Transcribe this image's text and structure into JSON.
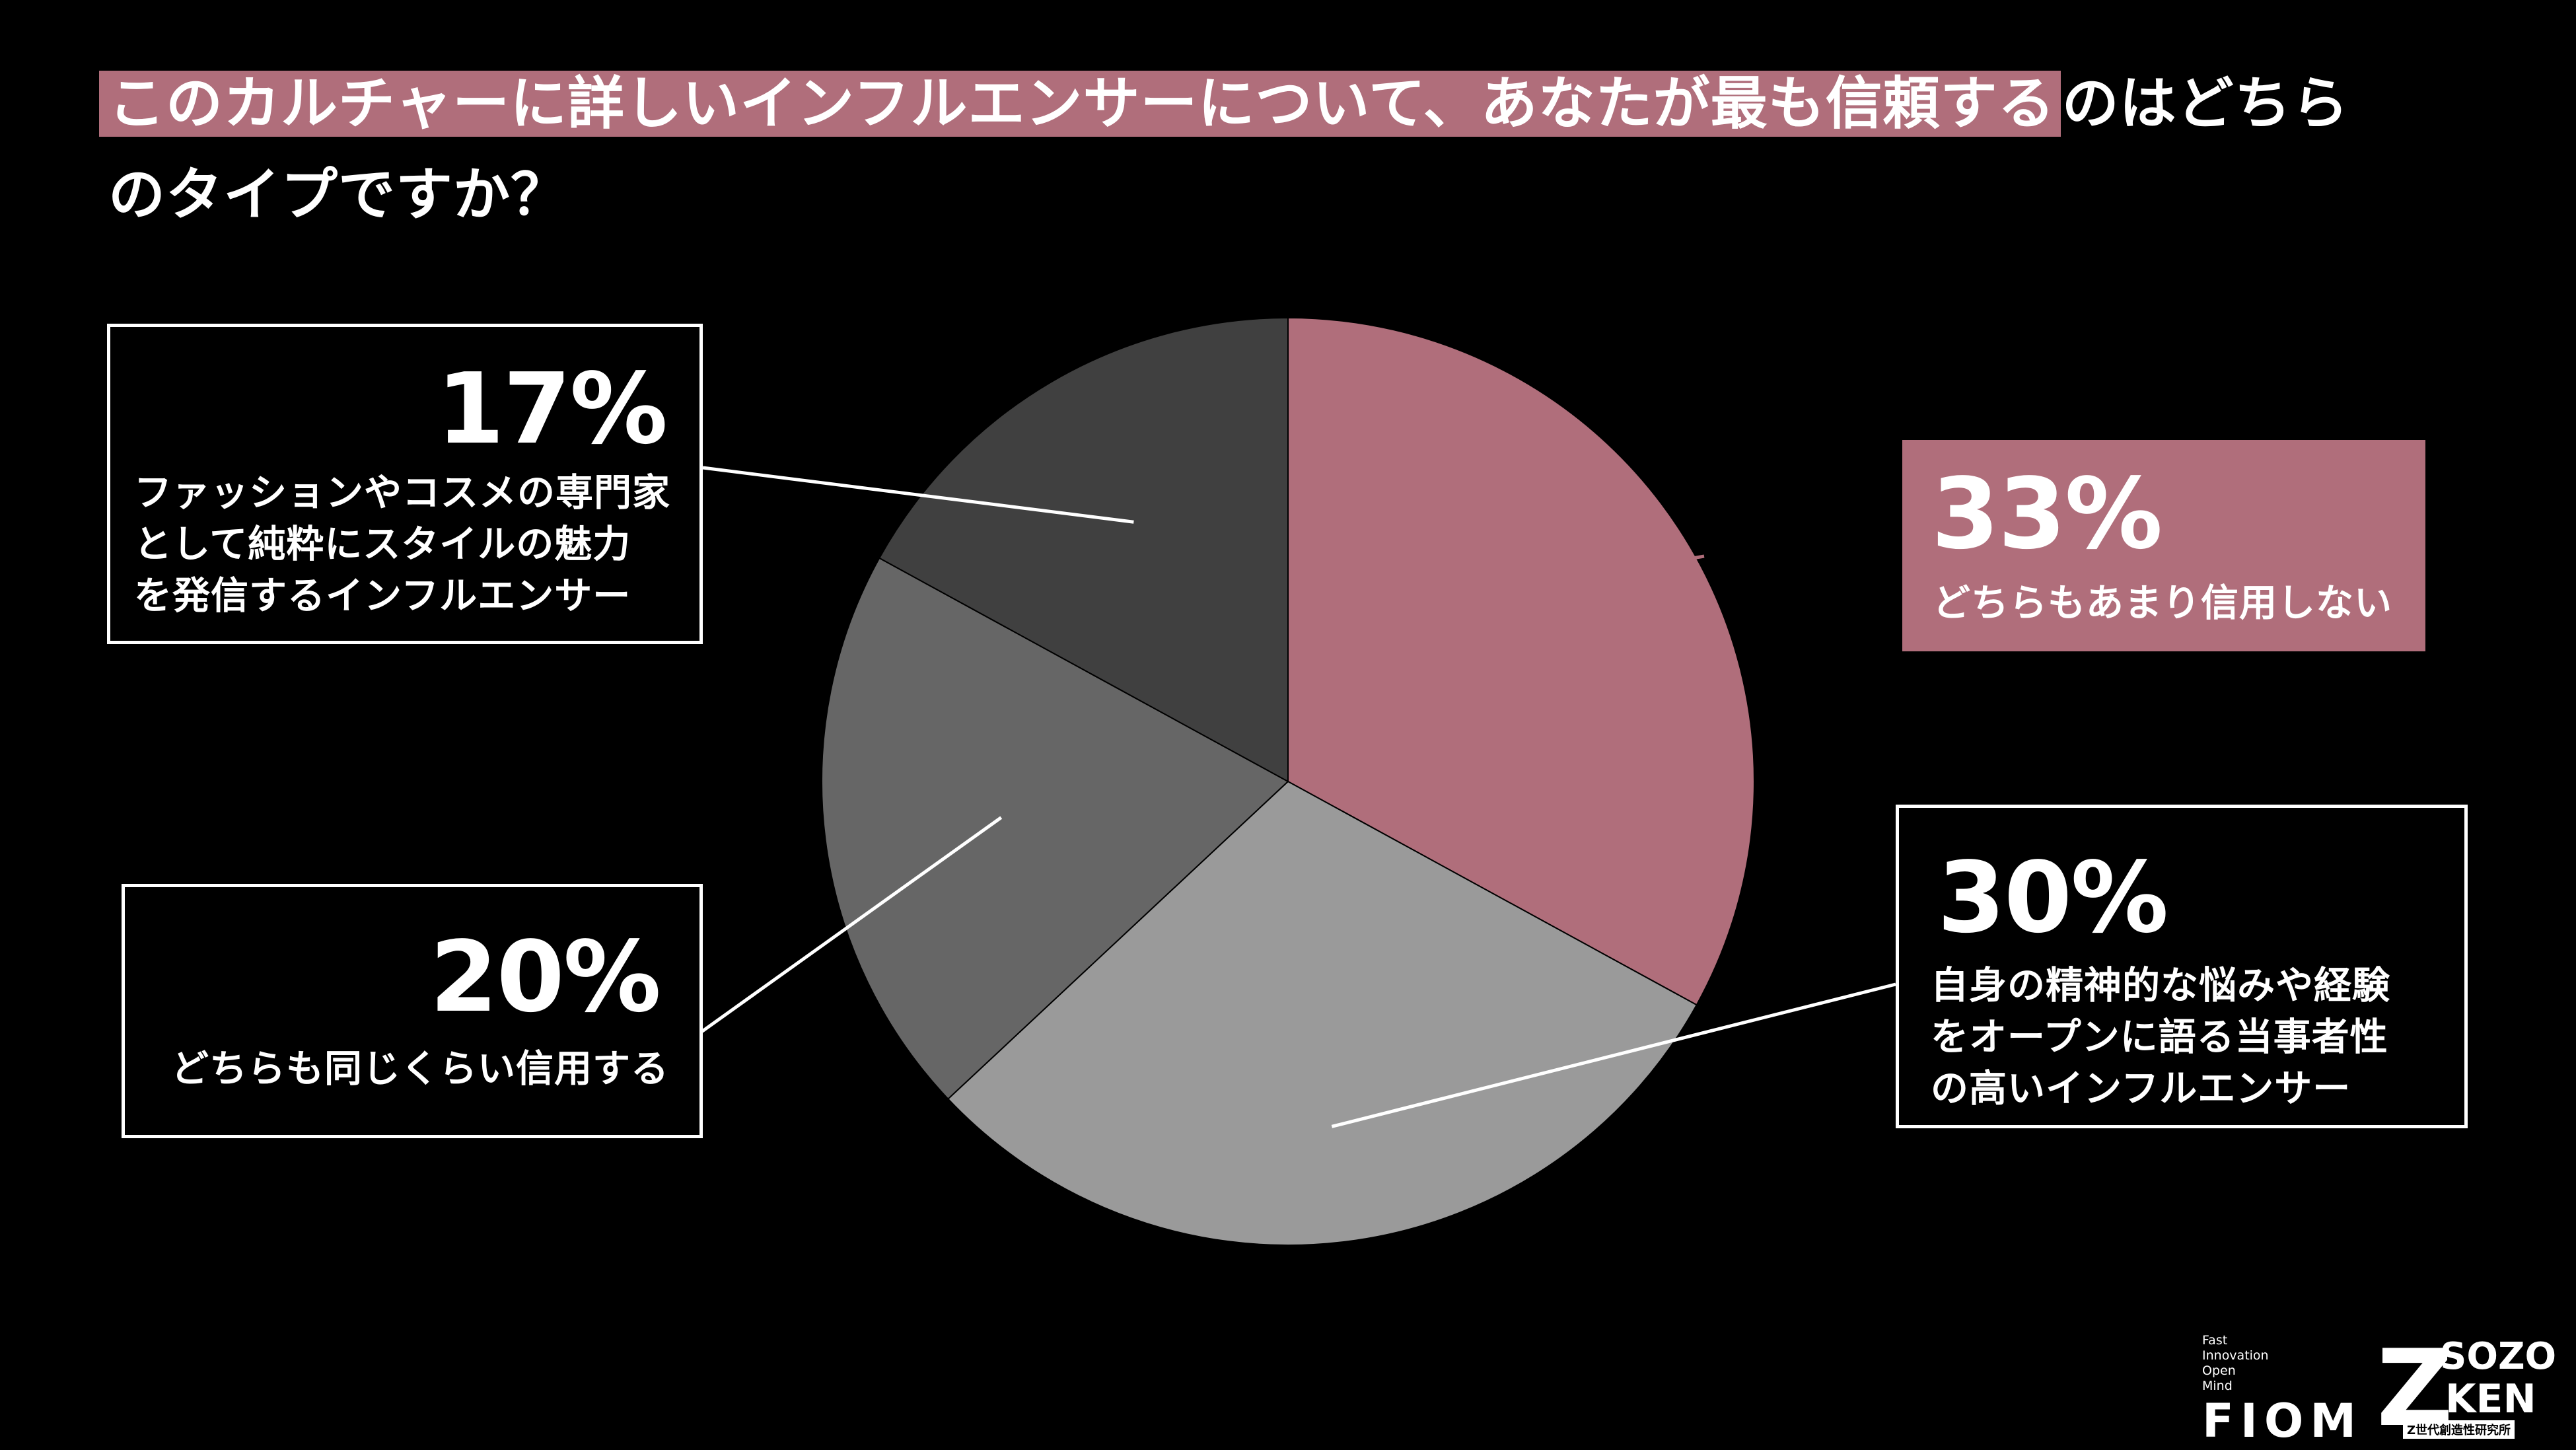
{
  "title": {
    "highlighted": "このカルチャーに詳しいインフルエンサーについて、あなたが最も信頼する",
    "rest": "のはどちら",
    "line2": "のタイプですか？"
  },
  "chart_data": {
    "type": "pie",
    "slices": [
      {
        "label": "どちらもあまり信用しない",
        "value": 33,
        "value_label": "33%",
        "color": "#b06e7b"
      },
      {
        "label": "自身の精神的な悩みや経験をオープンに語る当事者性の高いインフルエンサー",
        "value": 30,
        "value_label": "30%",
        "color": "#9a9a9a"
      },
      {
        "label": "どちらも同じくらい信用する",
        "value": 20,
        "value_label": "20%",
        "color": "#666666"
      },
      {
        "label": "ファッションやコスメの専門家として純粋にスタイルの魅力を発信するインフルエンサー",
        "value": 17,
        "value_label": "17%",
        "color": "#404040"
      }
    ]
  },
  "callouts": [
    {
      "pct": "33%",
      "lines": [
        "どちらもあまり信用しない"
      ]
    },
    {
      "pct": "30%",
      "lines": [
        "自身の精神的な悩みや経験",
        "をオープンに語る当事者性",
        "の高いインフルエンサー"
      ]
    },
    {
      "pct": "20%",
      "lines": [
        "どちらも同じくらい信用する"
      ]
    },
    {
      "pct": "17%",
      "lines": [
        "ファッションやコスメの専門家",
        "として純粋にスタイルの魅力",
        "を発信するインフルエンサー"
      ]
    }
  ],
  "footer": {
    "fiom_small": [
      "Fast",
      "Innovation",
      "Open",
      "Mind"
    ],
    "fiom": "FIOM",
    "sozo_z": "Z",
    "sozo_top": "SOZO",
    "sozo_ken": "KEN",
    "sozo_sub": "Z世代創造性研究所"
  }
}
